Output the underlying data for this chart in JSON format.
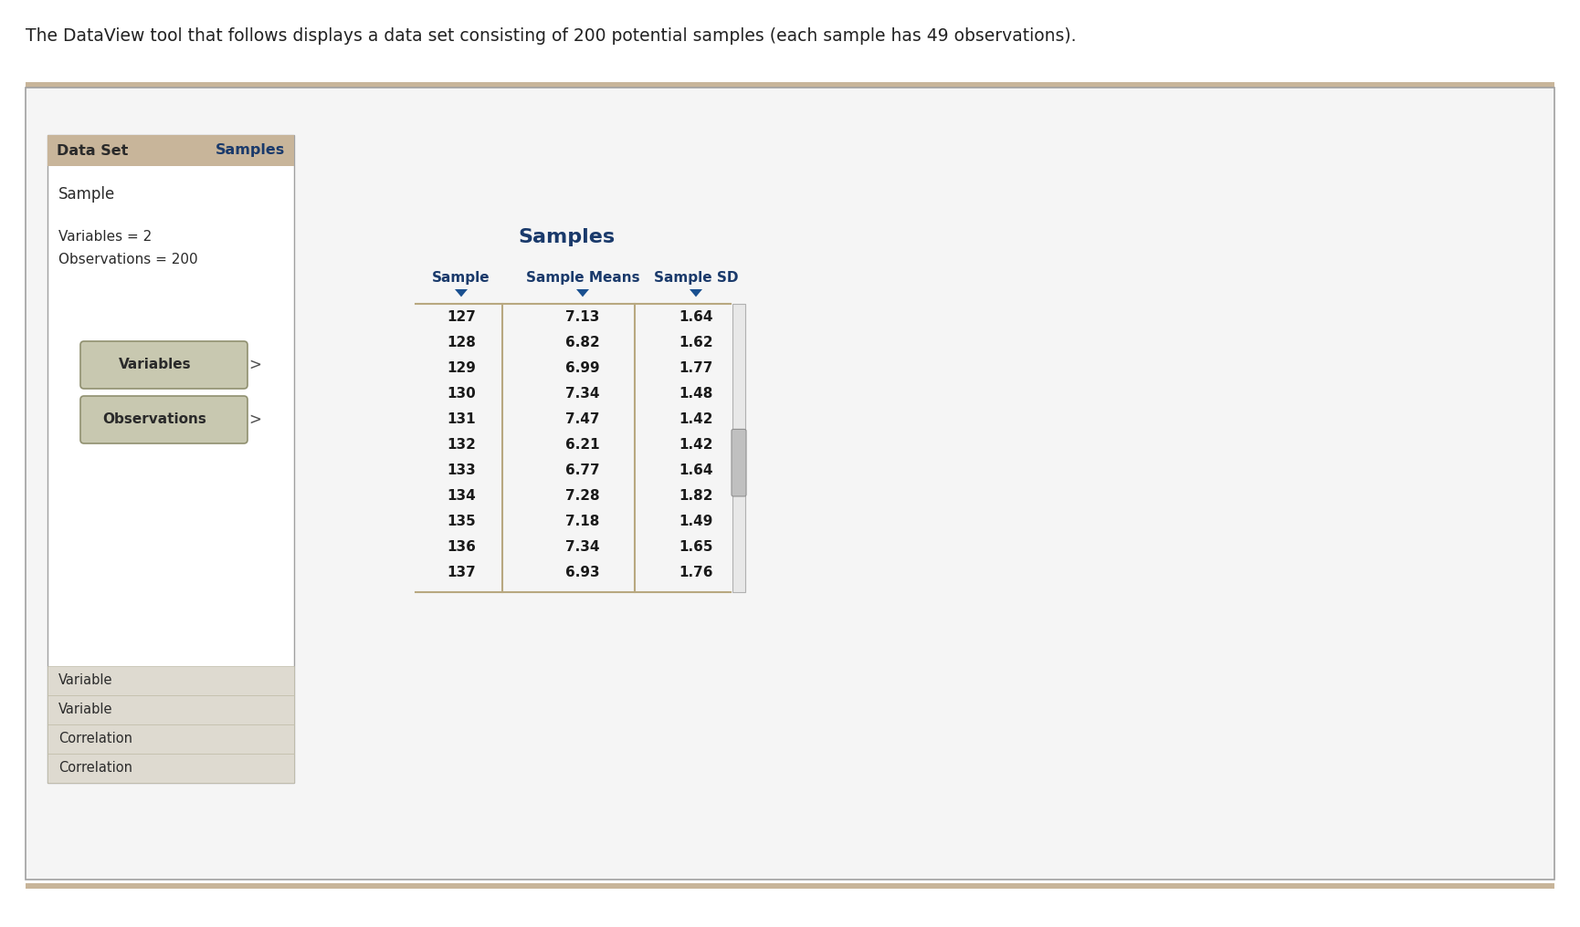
{
  "top_text": "The DataView tool that follows displays a data set consisting of 200 potential samples (each sample has 49 observations).",
  "tan_color": "#c8b59a",
  "bg_color": "#ffffff",
  "panel_bg": "#f5f5f5",
  "panel_border": "#a0a0a0",
  "left_panel_header_bg": "#c8b59a",
  "left_panel_header_text": "Data Set",
  "left_panel_header_right": "Samples",
  "left_panel_header_right_color": "#1a3a6b",
  "left_panel_line1": "Sample",
  "left_panel_line2": "Variables = 2",
  "left_panel_line3": "Observations = 200",
  "btn_variables_text": "Variables",
  "btn_observations_text": "Observations",
  "btn_bg": "#c8c8b0",
  "btn_border": "#909070",
  "bottom_rows": [
    "Variable",
    "Variable",
    "Correlation",
    "Correlation"
  ],
  "bottom_row_bg": "#dedad0",
  "table_title": "Samples",
  "table_title_color": "#1a3a6b",
  "col_headers": [
    "Sample",
    "Sample Means",
    "Sample SD"
  ],
  "col_header_color": "#1a3a6b",
  "arrow_down_color": "#1a5090",
  "samples": [
    127,
    128,
    129,
    130,
    131,
    132,
    133,
    134,
    135,
    136,
    137
  ],
  "means": [
    7.13,
    6.82,
    6.99,
    7.34,
    7.47,
    6.21,
    6.77,
    7.28,
    7.18,
    7.34,
    6.93
  ],
  "sds": [
    1.64,
    1.62,
    1.77,
    1.48,
    1.42,
    1.42,
    1.64,
    1.82,
    1.49,
    1.65,
    1.76
  ],
  "table_line_color": "#b8a880",
  "scrollbar_track": "#e8e8e8",
  "scrollbar_thumb": "#c0c0c0"
}
